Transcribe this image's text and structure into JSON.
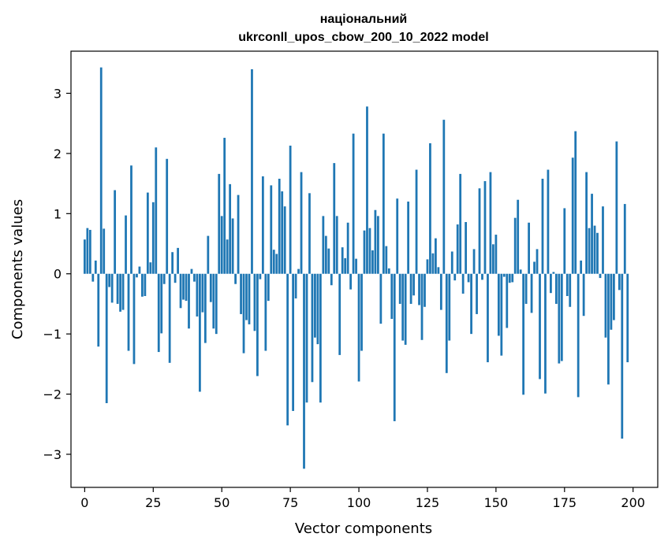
{
  "chart_data": {
    "type": "bar",
    "title_line1": "національний",
    "title_line2": "ukrconll_upos_cbow_200_10_2022 model",
    "xlabel": "Vector components",
    "ylabel": "Components values",
    "xlim": [
      -5,
      209
    ],
    "ylim": [
      -3.55,
      3.7
    ],
    "xticks": [
      0,
      25,
      50,
      75,
      100,
      125,
      150,
      175,
      200
    ],
    "xtick_labels": [
      "0",
      "25",
      "50",
      "75",
      "100",
      "125",
      "150",
      "175",
      "200"
    ],
    "yticks": [
      -3,
      -2,
      -1,
      0,
      1,
      2,
      3
    ],
    "ytick_labels": [
      "−3",
      "−2",
      "−1",
      "0",
      "1",
      "2",
      "3"
    ],
    "grid": false,
    "bar_color": "#1f77b4",
    "values": [
      0.57,
      0.76,
      0.73,
      -0.13,
      0.22,
      -1.21,
      3.43,
      0.75,
      -2.15,
      -0.22,
      -0.48,
      1.39,
      -0.5,
      -0.63,
      -0.6,
      0.97,
      -1.28,
      1.8,
      -1.5,
      -0.06,
      0.12,
      -0.38,
      -0.37,
      1.35,
      0.19,
      1.19,
      2.1,
      -1.3,
      -0.99,
      -0.17,
      1.91,
      -1.48,
      0.36,
      -0.15,
      0.43,
      -0.57,
      -0.43,
      -0.45,
      -0.91,
      0.08,
      -0.13,
      -0.71,
      -1.96,
      -0.64,
      -1.15,
      0.63,
      -0.47,
      -0.91,
      -1.0,
      1.66,
      0.96,
      2.26,
      0.57,
      1.49,
      0.92,
      -0.17,
      1.31,
      -0.67,
      -1.32,
      -0.77,
      -0.84,
      3.4,
      -0.95,
      -1.7,
      -0.09,
      1.62,
      -1.28,
      -0.45,
      1.47,
      0.4,
      0.33,
      1.58,
      1.37,
      1.12,
      -2.52,
      2.13,
      -2.28,
      -0.41,
      0.08,
      1.69,
      -3.24,
      -2.14,
      1.34,
      -1.8,
      -1.06,
      -1.17,
      -2.14,
      0.96,
      0.63,
      0.42,
      -0.19,
      1.84,
      0.96,
      -1.35,
      0.44,
      0.26,
      0.85,
      -0.26,
      2.33,
      0.25,
      -1.79,
      -1.28,
      0.72,
      2.78,
      0.76,
      0.39,
      1.06,
      0.96,
      -0.83,
      2.33,
      0.46,
      0.09,
      -0.75,
      -2.45,
      1.25,
      -0.5,
      -1.11,
      -1.18,
      1.2,
      -0.5,
      -0.36,
      1.73,
      -0.52,
      -1.1,
      -0.55,
      0.24,
      2.17,
      0.34,
      0.59,
      0.11,
      -0.6,
      2.56,
      -1.65,
      -1.11,
      0.37,
      -0.11,
      0.82,
      1.66,
      -0.33,
      0.86,
      -0.14,
      -1.0,
      0.41,
      -0.67,
      1.42,
      -0.1,
      1.54,
      -1.47,
      1.69,
      0.49,
      0.65,
      -1.03,
      -1.36,
      -0.05,
      -0.9,
      -0.15,
      -0.14,
      0.93,
      1.23,
      0.07,
      -2.01,
      -0.5,
      0.85,
      -0.65,
      0.2,
      0.41,
      -1.75,
      1.58,
      -1.99,
      1.73,
      -0.32,
      0.03,
      -0.5,
      -1.49,
      -1.45,
      1.09,
      -0.37,
      -0.55,
      1.93,
      2.37,
      -2.05,
      0.22,
      -0.7,
      1.69,
      0.76,
      1.33,
      0.8,
      0.68,
      -0.07,
      1.12,
      -1.06,
      -1.84,
      -0.93,
      -0.77,
      2.2,
      -0.27,
      -2.74,
      1.16,
      -1.47
    ]
  }
}
